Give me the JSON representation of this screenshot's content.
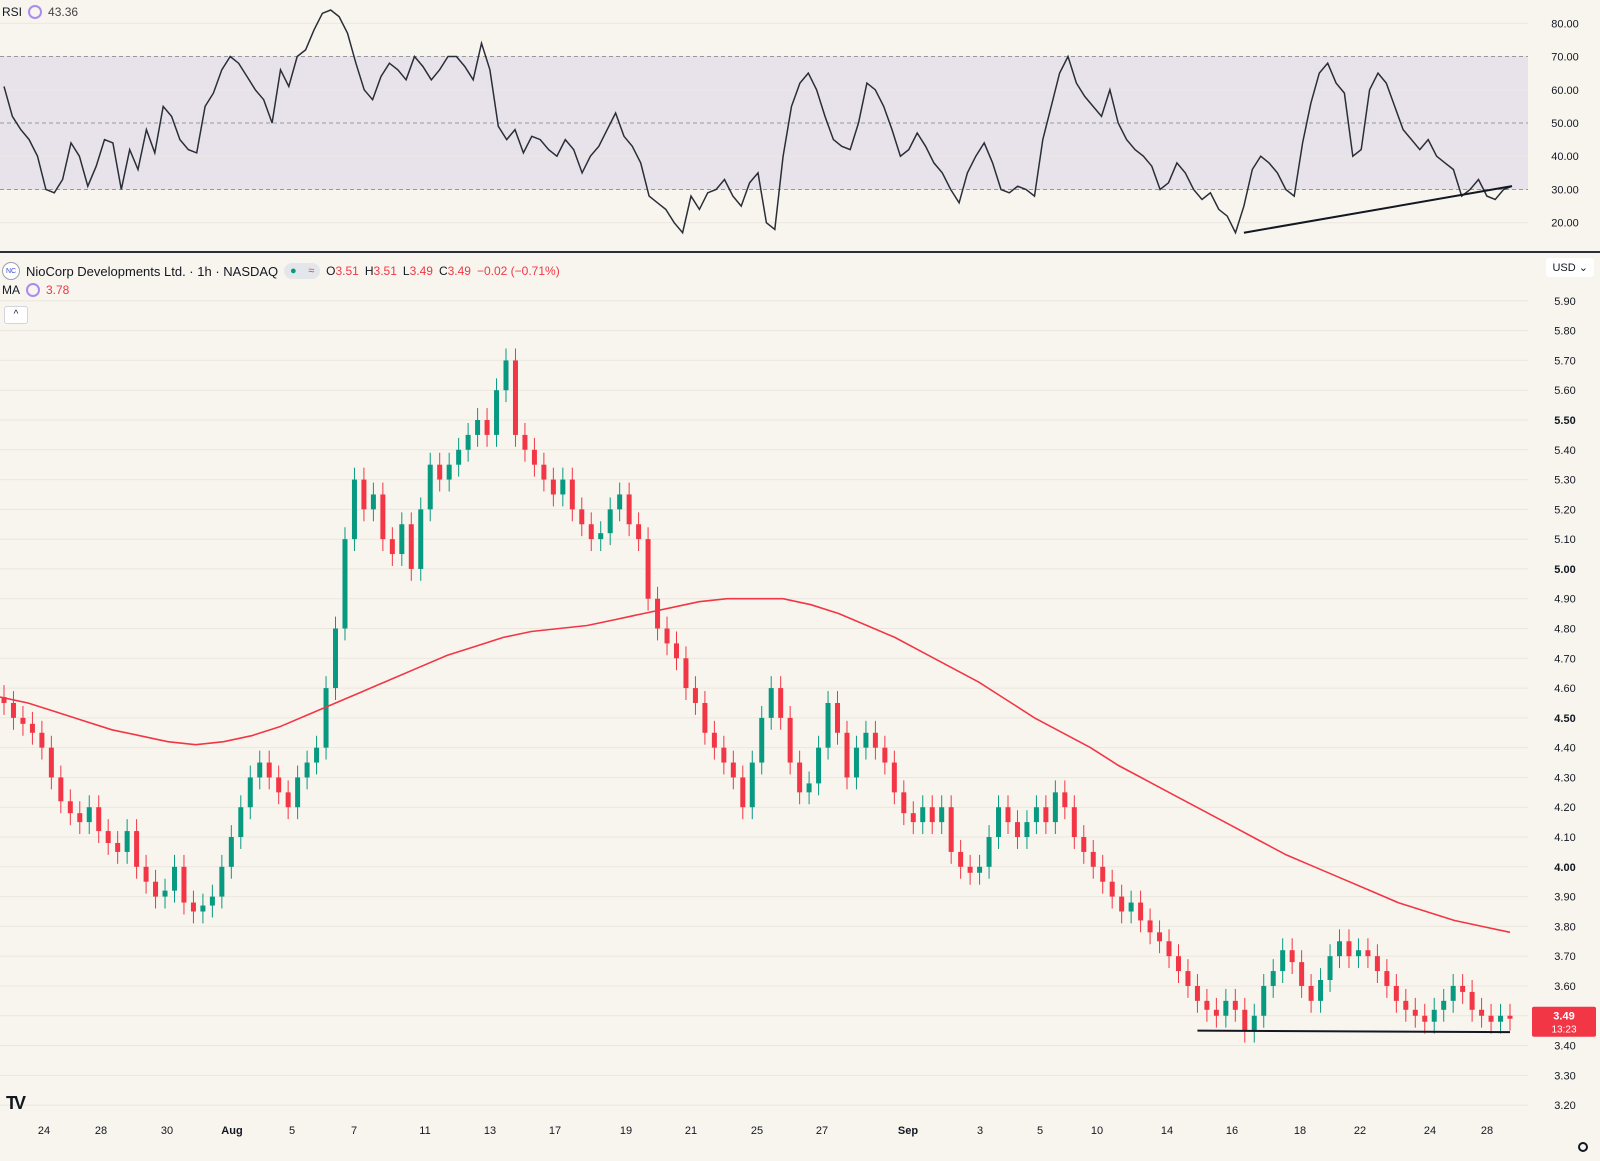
{
  "rsi_legend": {
    "name": "RSI",
    "value": "43.36"
  },
  "symbol": {
    "title": "NioCorp Developments Ltd. · 1h · NASDAQ",
    "logo_text": "NC",
    "o_label": "O",
    "o_val": "3.51",
    "h_label": "H",
    "h_val": "3.51",
    "l_label": "L",
    "l_val": "3.49",
    "c_label": "C",
    "c_val": "3.49",
    "change": "−0.02 (−0.71%)"
  },
  "ma_legend": {
    "name": "MA",
    "value": "3.78"
  },
  "currency": "USD",
  "price_tag": {
    "price": "3.49",
    "countdown": "13:23"
  },
  "colors": {
    "up": "#089981",
    "down": "#f23645",
    "ma": "#f23645",
    "rsi": "#2a2e39",
    "rsi_band": "#e8e3ea",
    "background": "#f8f5ee"
  },
  "chart_data": [
    {
      "type": "line",
      "name": "RSI",
      "ylim": [
        13,
        87
      ],
      "y_ticks": [
        "80.00",
        "70.00",
        "60.00",
        "50.00",
        "40.00",
        "30.00",
        "20.00"
      ],
      "bands": {
        "upper": 70,
        "middle": 50,
        "lower": 30
      },
      "values": [
        61,
        52,
        48,
        45,
        40,
        30,
        29,
        33,
        44,
        40,
        31,
        37,
        45,
        44,
        30,
        42,
        36,
        48,
        41,
        55,
        52,
        45,
        42,
        41,
        55,
        59,
        66,
        70,
        68,
        64,
        60,
        57,
        50,
        66,
        61,
        70,
        72,
        78,
        83,
        84,
        82,
        77,
        68,
        60,
        57,
        64,
        68,
        66,
        63,
        70,
        67,
        63,
        66,
        70,
        70,
        67,
        63,
        74,
        66,
        49,
        45,
        48,
        41,
        46,
        45,
        42,
        40,
        45,
        42,
        35,
        40,
        43,
        48,
        53,
        46,
        43,
        38,
        28,
        26,
        24,
        20,
        17,
        28,
        24,
        29,
        30,
        33,
        28,
        25,
        32,
        35,
        20,
        18,
        40,
        55,
        62,
        65,
        60,
        52,
        45,
        43,
        42,
        50,
        62,
        60,
        55,
        48,
        40,
        42,
        47,
        43,
        38,
        35,
        30,
        26,
        35,
        40,
        44,
        38,
        30,
        29,
        31,
        30,
        28,
        45,
        55,
        65,
        70,
        62,
        58,
        55,
        52,
        60,
        50,
        45,
        42,
        40,
        37,
        30,
        32,
        38,
        35,
        30,
        27,
        29,
        24,
        22,
        17,
        25,
        36,
        40,
        38,
        35,
        30,
        28,
        44,
        56,
        65,
        68,
        62,
        59,
        40,
        42,
        60,
        65,
        62,
        55,
        48,
        45,
        42,
        45,
        40,
        38,
        36,
        28,
        30,
        33,
        28,
        27,
        30,
        31
      ],
      "trendline": {
        "from_index": 148,
        "from_value": 17,
        "to_index": 180,
        "to_value": 31
      }
    },
    {
      "type": "candlestick",
      "name": "NioCorp Developments Ltd.",
      "ylim": [
        3.15,
        5.97
      ],
      "y_ticks": [
        "5.90",
        "5.80",
        "5.70",
        "5.60",
        "5.50",
        "5.40",
        "5.30",
        "5.20",
        "5.10",
        "5.00",
        "4.90",
        "4.80",
        "4.70",
        "4.60",
        "4.50",
        "4.40",
        "4.30",
        "4.20",
        "4.10",
        "4.00",
        "3.90",
        "3.80",
        "3.70",
        "3.60",
        "3.50",
        "3.40",
        "3.30",
        "3.20"
      ],
      "x_labels": [
        "24",
        "28",
        "30",
        "Aug",
        "5",
        "7",
        "11",
        "13",
        "17",
        "19",
        "21",
        "25",
        "27",
        "Sep",
        "3",
        "5",
        "10",
        "14",
        "16",
        "18",
        "22",
        "24",
        "28"
      ],
      "closes": [
        4.55,
        4.5,
        4.48,
        4.45,
        4.4,
        4.3,
        4.22,
        4.18,
        4.15,
        4.2,
        4.12,
        4.08,
        4.05,
        4.12,
        4.0,
        3.95,
        3.9,
        3.92,
        4.0,
        3.88,
        3.85,
        3.87,
        3.9,
        4.0,
        4.1,
        4.2,
        4.3,
        4.35,
        4.3,
        4.25,
        4.2,
        4.3,
        4.35,
        4.4,
        4.6,
        4.8,
        5.1,
        5.3,
        5.2,
        5.25,
        5.1,
        5.05,
        5.15,
        5.0,
        5.2,
        5.35,
        5.3,
        5.35,
        5.4,
        5.45,
        5.5,
        5.45,
        5.6,
        5.7,
        5.45,
        5.4,
        5.35,
        5.3,
        5.25,
        5.3,
        5.2,
        5.15,
        5.1,
        5.12,
        5.2,
        5.25,
        5.15,
        5.1,
        4.9,
        4.8,
        4.75,
        4.7,
        4.6,
        4.55,
        4.45,
        4.4,
        4.35,
        4.3,
        4.2,
        4.35,
        4.5,
        4.6,
        4.5,
        4.35,
        4.25,
        4.28,
        4.4,
        4.55,
        4.45,
        4.3,
        4.4,
        4.45,
        4.4,
        4.35,
        4.25,
        4.18,
        4.15,
        4.2,
        4.15,
        4.2,
        4.05,
        4.0,
        3.98,
        4.0,
        4.1,
        4.2,
        4.15,
        4.1,
        4.15,
        4.2,
        4.15,
        4.25,
        4.2,
        4.1,
        4.05,
        4.0,
        3.95,
        3.9,
        3.85,
        3.88,
        3.82,
        3.78,
        3.75,
        3.7,
        3.65,
        3.6,
        3.55,
        3.52,
        3.5,
        3.55,
        3.52,
        3.45,
        3.5,
        3.6,
        3.65,
        3.72,
        3.68,
        3.6,
        3.55,
        3.62,
        3.7,
        3.75,
        3.7,
        3.72,
        3.7,
        3.65,
        3.6,
        3.55,
        3.52,
        3.5,
        3.48,
        3.52,
        3.55,
        3.6,
        3.58,
        3.52,
        3.5,
        3.48,
        3.5,
        3.49
      ],
      "ma": [
        4.57,
        4.55,
        4.52,
        4.49,
        4.46,
        4.44,
        4.42,
        4.41,
        4.42,
        4.44,
        4.47,
        4.51,
        4.55,
        4.59,
        4.63,
        4.67,
        4.71,
        4.74,
        4.77,
        4.79,
        4.8,
        4.81,
        4.83,
        4.85,
        4.87,
        4.89,
        4.9,
        4.9,
        4.9,
        4.88,
        4.85,
        4.81,
        4.77,
        4.72,
        4.67,
        4.62,
        4.56,
        4.5,
        4.45,
        4.4,
        4.34,
        4.29,
        4.24,
        4.19,
        4.14,
        4.09,
        4.04,
        4.0,
        3.96,
        3.92,
        3.88,
        3.85,
        3.82,
        3.8,
        3.78
      ],
      "support_line": {
        "from_index": 126,
        "from_value": 3.45,
        "to_index": 159,
        "to_value": 3.445
      }
    }
  ]
}
